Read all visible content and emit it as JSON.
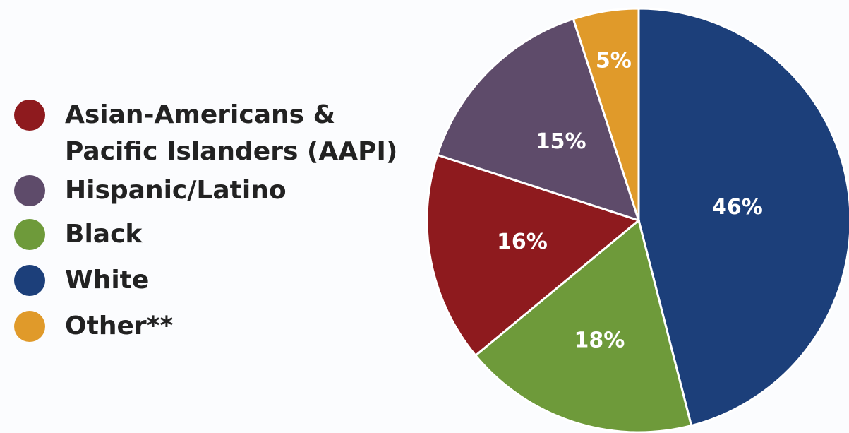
{
  "chart_data": {
    "type": "pie",
    "categories": [
      "White",
      "Black",
      "Asian-Americans & Pacific Islanders (AAPI)",
      "Hispanic/Latino",
      "Other**"
    ],
    "values": [
      46,
      18,
      16,
      15,
      5
    ],
    "value_labels": [
      "46%",
      "18%",
      "16%",
      "15%",
      "5%"
    ],
    "colors": [
      "#1c3f7a",
      "#6e9a3a",
      "#8e1a1e",
      "#5e4b6a",
      "#e09a2a"
    ]
  }
}
